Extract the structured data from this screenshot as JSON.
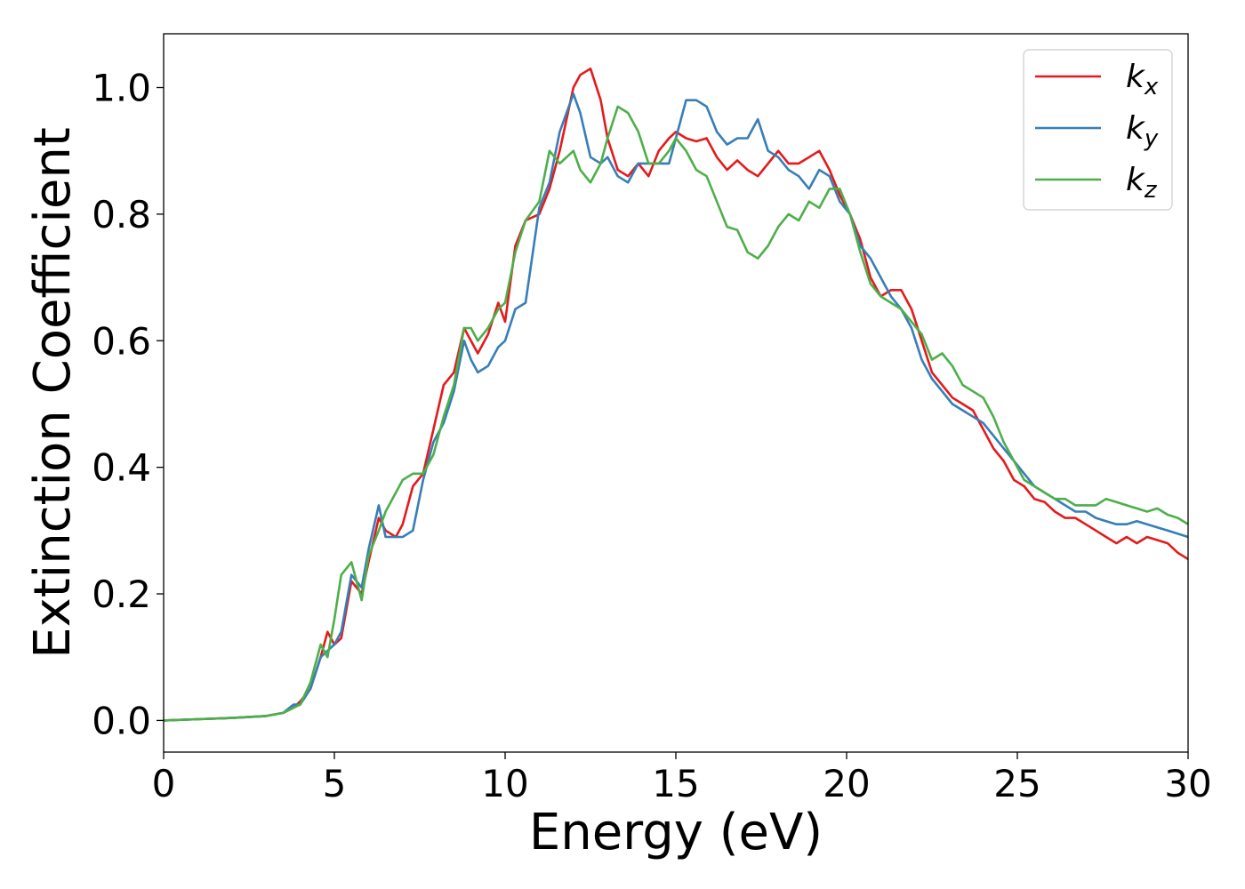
{
  "chart_data": {
    "type": "line",
    "title": "",
    "xlabel": "Energy (eV)",
    "ylabel": "Extinction Coefficient",
    "xlim": [
      0,
      30
    ],
    "ylim": [
      -0.05,
      1.085
    ],
    "xticks": [
      0,
      5,
      10,
      15,
      20,
      25,
      30
    ],
    "xtick_labels": [
      "0",
      "5",
      "10",
      "15",
      "20",
      "25",
      "30"
    ],
    "yticks": [
      0.0,
      0.2,
      0.4,
      0.6,
      0.8,
      1.0
    ],
    "ytick_labels": [
      "0.0",
      "0.2",
      "0.4",
      "0.6",
      "0.8",
      "1.0"
    ],
    "grid": false,
    "legend_position": "top-right",
    "series": [
      {
        "name": "kx",
        "label_main": "k",
        "label_sub": "x",
        "color": "#e41a1c",
        "x": [
          0,
          1,
          2,
          3,
          3.5,
          3.8,
          4.0,
          4.3,
          4.6,
          4.8,
          5.0,
          5.2,
          5.5,
          5.8,
          6.0,
          6.3,
          6.5,
          6.8,
          7.0,
          7.3,
          7.6,
          7.9,
          8.2,
          8.5,
          8.8,
          9.0,
          9.2,
          9.5,
          9.8,
          10.0,
          10.3,
          10.6,
          11.0,
          11.3,
          11.6,
          12.0,
          12.2,
          12.5,
          12.8,
          13.0,
          13.3,
          13.6,
          13.9,
          14.2,
          14.5,
          14.8,
          15.0,
          15.3,
          15.6,
          15.9,
          16.2,
          16.5,
          16.8,
          17.1,
          17.4,
          17.7,
          18.0,
          18.3,
          18.6,
          18.9,
          19.2,
          19.5,
          19.8,
          20.1,
          20.4,
          20.7,
          21.0,
          21.3,
          21.6,
          21.9,
          22.2,
          22.5,
          22.8,
          23.1,
          23.4,
          23.7,
          24.0,
          24.3,
          24.6,
          24.9,
          25.2,
          25.5,
          25.8,
          26.1,
          26.4,
          26.7,
          27.0,
          27.3,
          27.6,
          27.9,
          28.2,
          28.5,
          28.8,
          29.1,
          29.4,
          29.7,
          30
        ],
        "y": [
          0,
          0.002,
          0.004,
          0.007,
          0.012,
          0.02,
          0.03,
          0.05,
          0.1,
          0.14,
          0.12,
          0.13,
          0.22,
          0.2,
          0.25,
          0.32,
          0.3,
          0.29,
          0.31,
          0.37,
          0.39,
          0.46,
          0.53,
          0.55,
          0.62,
          0.6,
          0.58,
          0.61,
          0.66,
          0.63,
          0.75,
          0.79,
          0.8,
          0.84,
          0.9,
          1.0,
          1.02,
          1.03,
          0.98,
          0.92,
          0.87,
          0.86,
          0.88,
          0.86,
          0.9,
          0.92,
          0.93,
          0.92,
          0.915,
          0.92,
          0.89,
          0.87,
          0.885,
          0.87,
          0.86,
          0.88,
          0.9,
          0.88,
          0.88,
          0.89,
          0.9,
          0.87,
          0.83,
          0.8,
          0.76,
          0.7,
          0.67,
          0.68,
          0.68,
          0.65,
          0.6,
          0.55,
          0.53,
          0.51,
          0.5,
          0.49,
          0.46,
          0.43,
          0.41,
          0.38,
          0.37,
          0.35,
          0.345,
          0.33,
          0.32,
          0.32,
          0.31,
          0.3,
          0.29,
          0.28,
          0.29,
          0.28,
          0.29,
          0.285,
          0.28,
          0.265,
          0.255
        ]
      },
      {
        "name": "ky",
        "label_main": "k",
        "label_sub": "y",
        "color": "#377eb8",
        "x": [
          0,
          1,
          2,
          3,
          3.5,
          3.8,
          4.0,
          4.3,
          4.6,
          4.8,
          5.0,
          5.2,
          5.5,
          5.8,
          6.0,
          6.3,
          6.5,
          6.8,
          7.0,
          7.3,
          7.6,
          7.9,
          8.2,
          8.5,
          8.8,
          9.0,
          9.2,
          9.5,
          9.8,
          10.0,
          10.3,
          10.6,
          11.0,
          11.3,
          11.6,
          12.0,
          12.2,
          12.5,
          12.8,
          13.0,
          13.3,
          13.6,
          13.9,
          14.2,
          14.5,
          14.8,
          15.0,
          15.3,
          15.6,
          15.9,
          16.2,
          16.5,
          16.8,
          17.1,
          17.4,
          17.7,
          18.0,
          18.3,
          18.6,
          18.9,
          19.2,
          19.5,
          19.8,
          20.1,
          20.4,
          20.7,
          21.0,
          21.3,
          21.6,
          21.9,
          22.2,
          22.5,
          22.8,
          23.1,
          23.4,
          23.7,
          24.0,
          24.3,
          24.6,
          24.9,
          25.2,
          25.5,
          25.8,
          26.1,
          26.4,
          26.7,
          27.0,
          27.3,
          27.6,
          27.9,
          28.2,
          28.5,
          28.8,
          29.1,
          29.4,
          29.7,
          30
        ],
        "y": [
          0,
          0.002,
          0.004,
          0.007,
          0.012,
          0.025,
          0.025,
          0.05,
          0.1,
          0.11,
          0.12,
          0.14,
          0.23,
          0.21,
          0.27,
          0.34,
          0.29,
          0.29,
          0.29,
          0.3,
          0.38,
          0.44,
          0.47,
          0.52,
          0.6,
          0.57,
          0.55,
          0.56,
          0.59,
          0.6,
          0.65,
          0.66,
          0.81,
          0.85,
          0.93,
          0.99,
          0.96,
          0.89,
          0.88,
          0.89,
          0.86,
          0.85,
          0.88,
          0.88,
          0.88,
          0.88,
          0.92,
          0.98,
          0.98,
          0.97,
          0.93,
          0.91,
          0.92,
          0.92,
          0.95,
          0.9,
          0.89,
          0.87,
          0.86,
          0.84,
          0.87,
          0.86,
          0.82,
          0.8,
          0.75,
          0.73,
          0.7,
          0.67,
          0.65,
          0.62,
          0.57,
          0.54,
          0.52,
          0.5,
          0.49,
          0.48,
          0.47,
          0.45,
          0.43,
          0.41,
          0.39,
          0.37,
          0.36,
          0.35,
          0.34,
          0.33,
          0.33,
          0.32,
          0.315,
          0.31,
          0.31,
          0.315,
          0.31,
          0.305,
          0.3,
          0.295,
          0.29
        ]
      },
      {
        "name": "kz",
        "label_main": "k",
        "label_sub": "z",
        "color": "#4daf4a",
        "x": [
          0,
          1,
          2,
          3,
          3.5,
          3.8,
          4.0,
          4.3,
          4.6,
          4.8,
          5.0,
          5.2,
          5.5,
          5.8,
          6.0,
          6.3,
          6.5,
          6.8,
          7.0,
          7.3,
          7.6,
          7.9,
          8.2,
          8.5,
          8.8,
          9.0,
          9.2,
          9.5,
          9.8,
          10.0,
          10.3,
          10.6,
          11.0,
          11.3,
          11.6,
          12.0,
          12.2,
          12.5,
          12.8,
          13.0,
          13.3,
          13.6,
          13.9,
          14.2,
          14.5,
          14.8,
          15.0,
          15.3,
          15.6,
          15.9,
          16.2,
          16.5,
          16.8,
          17.1,
          17.4,
          17.7,
          18.0,
          18.3,
          18.6,
          18.9,
          19.2,
          19.5,
          19.8,
          20.1,
          20.4,
          20.7,
          21.0,
          21.3,
          21.6,
          21.9,
          22.2,
          22.5,
          22.8,
          23.1,
          23.4,
          23.7,
          24.0,
          24.3,
          24.6,
          24.9,
          25.2,
          25.5,
          25.8,
          26.1,
          26.4,
          26.7,
          27.0,
          27.3,
          27.6,
          27.9,
          28.2,
          28.5,
          28.8,
          29.1,
          29.4,
          29.7,
          30
        ],
        "y": [
          0,
          0.002,
          0.004,
          0.007,
          0.012,
          0.02,
          0.025,
          0.06,
          0.12,
          0.1,
          0.16,
          0.23,
          0.25,
          0.19,
          0.26,
          0.3,
          0.33,
          0.36,
          0.38,
          0.39,
          0.39,
          0.42,
          0.48,
          0.53,
          0.62,
          0.62,
          0.6,
          0.62,
          0.65,
          0.66,
          0.74,
          0.79,
          0.82,
          0.9,
          0.88,
          0.9,
          0.87,
          0.85,
          0.88,
          0.92,
          0.97,
          0.96,
          0.93,
          0.88,
          0.88,
          0.9,
          0.92,
          0.9,
          0.87,
          0.86,
          0.82,
          0.78,
          0.775,
          0.74,
          0.73,
          0.75,
          0.78,
          0.8,
          0.79,
          0.82,
          0.81,
          0.84,
          0.84,
          0.8,
          0.74,
          0.69,
          0.67,
          0.66,
          0.65,
          0.63,
          0.61,
          0.57,
          0.58,
          0.56,
          0.53,
          0.52,
          0.51,
          0.48,
          0.44,
          0.41,
          0.38,
          0.37,
          0.36,
          0.35,
          0.35,
          0.34,
          0.34,
          0.34,
          0.35,
          0.345,
          0.34,
          0.335,
          0.33,
          0.335,
          0.325,
          0.32,
          0.31
        ]
      }
    ]
  }
}
